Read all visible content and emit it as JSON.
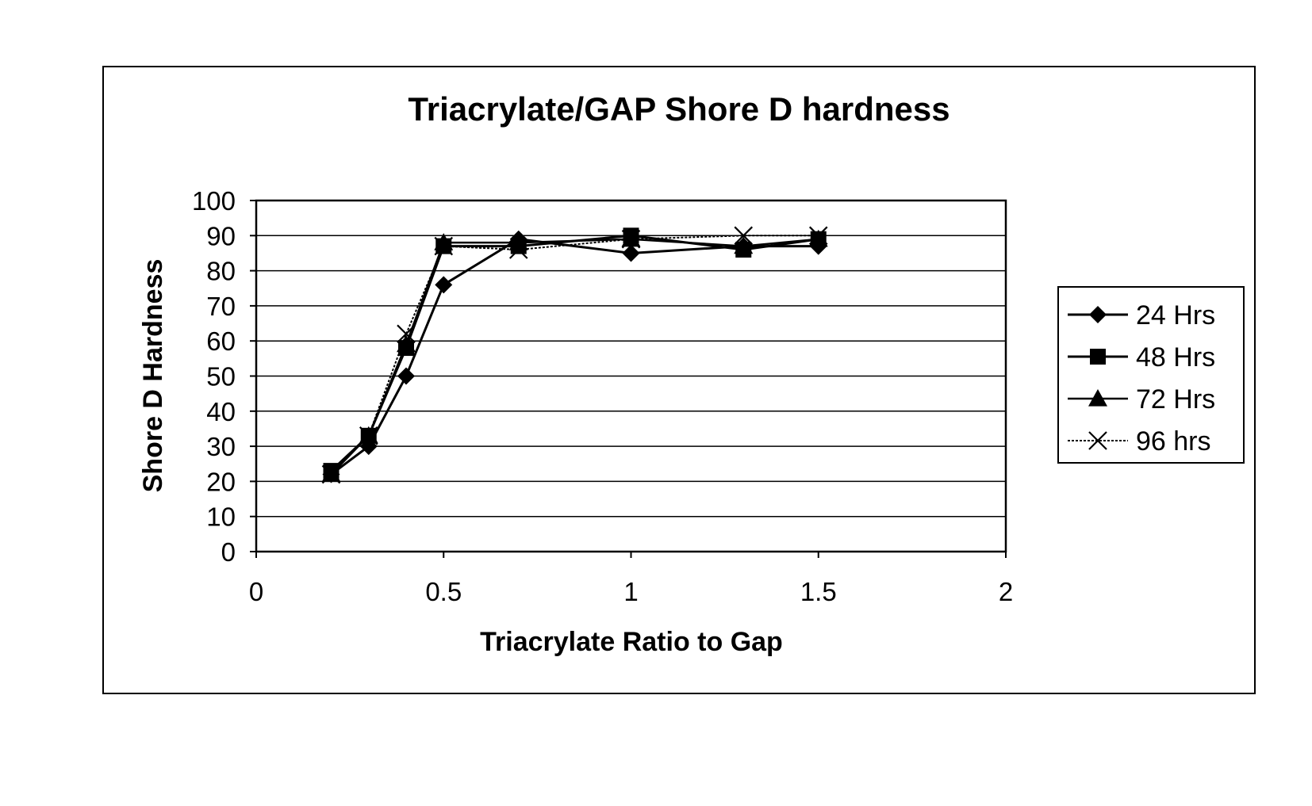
{
  "chart_data": {
    "type": "line",
    "title": "Triacrylate/GAP Shore D hardness",
    "xlabel": "Triacrylate Ratio to Gap",
    "ylabel": "Shore D Hardness",
    "xlim": [
      0,
      2
    ],
    "ylim": [
      0,
      100
    ],
    "x_ticks": [
      "0",
      "0.5",
      "1",
      "1.5",
      "2"
    ],
    "y_ticks": [
      "0",
      "10",
      "20",
      "30",
      "40",
      "50",
      "60",
      "70",
      "80",
      "90",
      "100"
    ],
    "grid": "horizontal",
    "legend_position": "right",
    "x": [
      0.2,
      0.3,
      0.4,
      0.5,
      0.7,
      1.0,
      1.3,
      1.5
    ],
    "series": [
      {
        "name": "24 Hrs",
        "marker": "diamond",
        "values": [
          22,
          30,
          50,
          76,
          89,
          85,
          87,
          87
        ]
      },
      {
        "name": "48 Hrs",
        "marker": "square",
        "values": [
          23,
          33,
          58,
          87,
          87,
          90,
          86,
          89
        ]
      },
      {
        "name": "72 Hrs",
        "marker": "triangle",
        "values": [
          22,
          33,
          59,
          88,
          88,
          89,
          87,
          89
        ]
      },
      {
        "name": "96 hrs",
        "marker": "x",
        "values": [
          22,
          33,
          62,
          87,
          86,
          89,
          90,
          90
        ]
      }
    ]
  }
}
